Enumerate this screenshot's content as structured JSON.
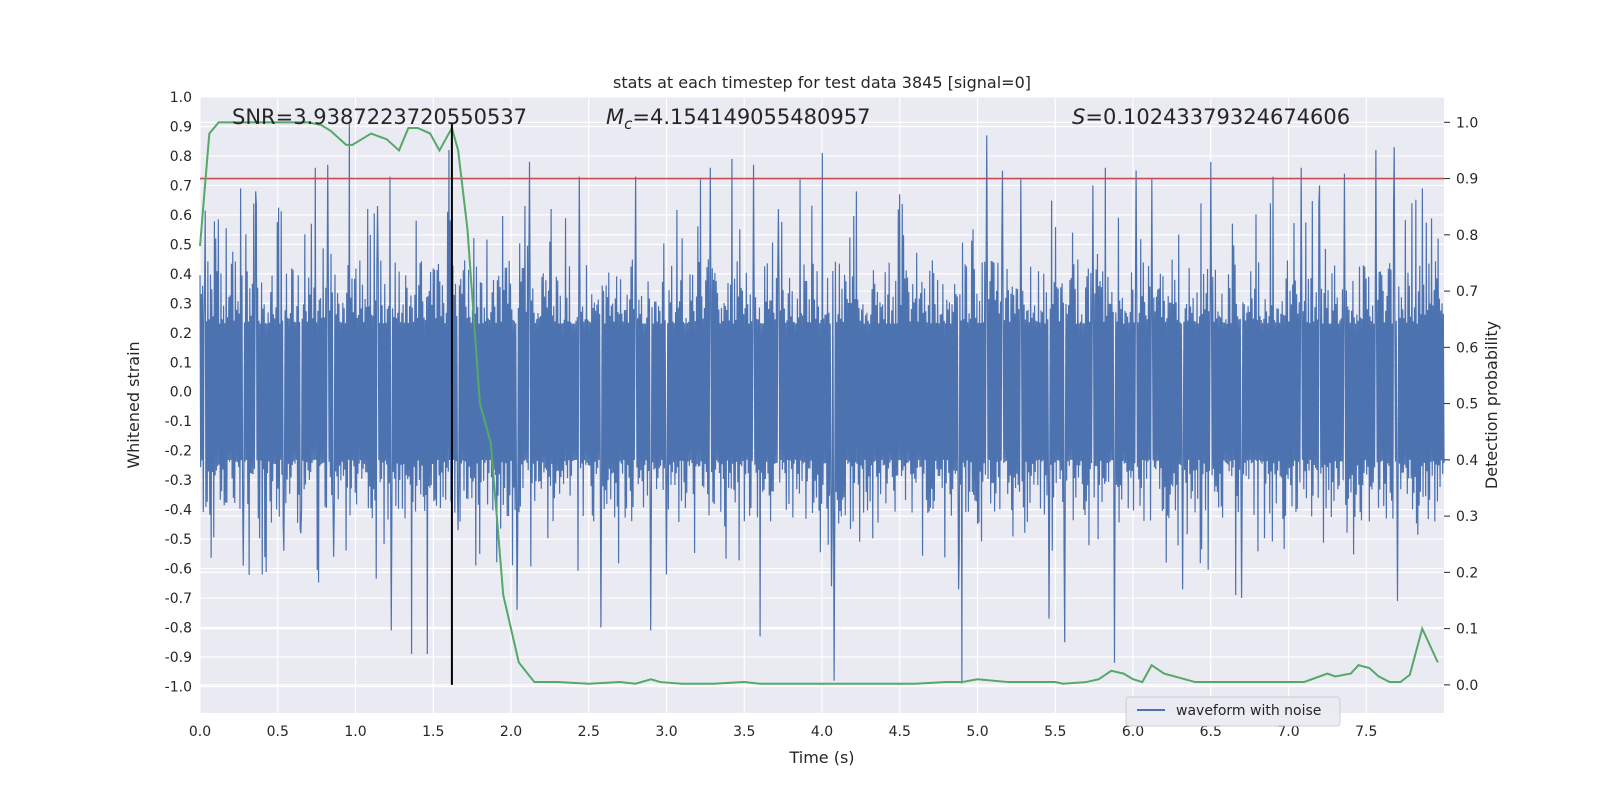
{
  "chart_data": {
    "type": "line",
    "title": "stats at each timestep for test data 3845 [signal=0]",
    "xlabel": "Time (s)",
    "ylabel_left": "Whitened strain",
    "ylabel_right": "Detection probability",
    "xlim": [
      0,
      8.0
    ],
    "ylim_left": [
      -1.09,
      1.0
    ],
    "ylim_right": [
      -0.05,
      1.045
    ],
    "xticks": [
      "0.0",
      "0.5",
      "1.0",
      "1.5",
      "2.0",
      "2.5",
      "3.0",
      "3.5",
      "4.0",
      "4.5",
      "5.0",
      "5.5",
      "6.0",
      "6.5",
      "7.0",
      "7.5"
    ],
    "yticks_left": [
      "1.0",
      "0.9",
      "0.8",
      "0.7",
      "0.6",
      "0.5",
      "0.4",
      "0.3",
      "0.2",
      "0.1",
      "0.0",
      "-0.1",
      "-0.2",
      "-0.3",
      "-0.4",
      "-0.5",
      "-0.6",
      "-0.7",
      "-0.8",
      "-0.9",
      "-1.0"
    ],
    "yticks_right": [
      "1.0",
      "0.9",
      "0.8",
      "0.7",
      "0.6",
      "0.5",
      "0.4",
      "0.3",
      "0.2",
      "0.1",
      "0.0"
    ],
    "annotations": {
      "snr_prefix": "SNR=",
      "snr": "3.9387223720550537",
      "mc_symbol": "M",
      "mc_sub": "c",
      "mc_eq": "=",
      "mc": "4.154149055480957",
      "s_symbol": "S",
      "s_eq": "=",
      "s": "0.10243379324674606"
    },
    "threshold": {
      "value": 0.9,
      "axis": "right",
      "color": "#c44e52"
    },
    "marker_time": 1.62,
    "waveform": {
      "name": "waveform with noise",
      "color": "#4c72b0",
      "envelope_typical": 0.42,
      "peaks": [
        [
          0.03,
          0.36
        ],
        [
          0.1,
          0.52
        ],
        [
          0.26,
          0.69
        ],
        [
          0.28,
          -0.59
        ],
        [
          0.36,
          0.68
        ],
        [
          0.4,
          -0.62
        ],
        [
          0.54,
          -0.54
        ],
        [
          0.65,
          -0.48
        ],
        [
          0.74,
          0.76
        ],
        [
          0.82,
          0.77
        ],
        [
          0.86,
          -0.56
        ],
        [
          0.96,
          0.91
        ],
        [
          1.08,
          0.62
        ],
        [
          1.14,
          0.63
        ],
        [
          1.22,
          0.73
        ],
        [
          1.23,
          -0.81
        ],
        [
          1.36,
          -0.89
        ],
        [
          1.46,
          -0.89
        ],
        [
          1.6,
          0.82
        ],
        [
          1.66,
          -0.47
        ],
        [
          1.8,
          -0.55
        ],
        [
          2.04,
          -0.74
        ],
        [
          2.12,
          0.78
        ],
        [
          2.26,
          0.62
        ],
        [
          2.44,
          0.73
        ],
        [
          2.58,
          -0.8
        ],
        [
          2.8,
          0.73
        ],
        [
          2.9,
          -0.81
        ],
        [
          3.0,
          -0.62
        ],
        [
          3.22,
          0.72
        ],
        [
          3.28,
          0.76
        ],
        [
          3.42,
          0.79
        ],
        [
          3.56,
          0.77
        ],
        [
          3.6,
          -0.83
        ],
        [
          3.72,
          0.62
        ],
        [
          3.86,
          0.72
        ],
        [
          4.0,
          0.81
        ],
        [
          4.06,
          -0.66
        ],
        [
          4.08,
          -0.98
        ],
        [
          4.22,
          0.68
        ],
        [
          4.5,
          0.67
        ],
        [
          4.88,
          -0.67
        ],
        [
          4.9,
          -0.99
        ],
        [
          5.06,
          0.87
        ],
        [
          5.16,
          0.75
        ],
        [
          5.28,
          0.72
        ],
        [
          5.46,
          -0.77
        ],
        [
          5.56,
          -0.85
        ],
        [
          5.74,
          0.7
        ],
        [
          5.82,
          0.76
        ],
        [
          5.88,
          -0.92
        ],
        [
          6.02,
          0.75
        ],
        [
          6.12,
          0.72
        ],
        [
          6.32,
          -0.67
        ],
        [
          6.5,
          0.78
        ],
        [
          6.66,
          -0.69
        ],
        [
          6.7,
          -0.7
        ],
        [
          6.9,
          0.73
        ],
        [
          7.08,
          0.76
        ],
        [
          7.2,
          0.7
        ],
        [
          7.36,
          0.74
        ],
        [
          7.56,
          0.82
        ],
        [
          7.68,
          0.83
        ],
        [
          7.7,
          -0.71
        ],
        [
          7.86,
          0.69
        ],
        [
          7.96,
          0.52
        ]
      ]
    },
    "probability": {
      "name": "detection probability",
      "color": "#55a868",
      "t": [
        0.0,
        0.06,
        0.12,
        0.3,
        0.5,
        0.7,
        0.78,
        0.84,
        0.94,
        0.98,
        1.04,
        1.1,
        1.2,
        1.28,
        1.34,
        1.4,
        1.48,
        1.54,
        1.62,
        1.66,
        1.72,
        1.8,
        1.87,
        1.95,
        2.05,
        2.15,
        2.3,
        2.5,
        2.7,
        2.8,
        2.9,
        2.96,
        3.1,
        3.3,
        3.5,
        3.6,
        3.8,
        4.0,
        4.2,
        4.4,
        4.6,
        4.8,
        4.9,
        5.0,
        5.2,
        5.4,
        5.5,
        5.55,
        5.7,
        5.78,
        5.86,
        5.94,
        6.0,
        6.06,
        6.12,
        6.2,
        6.4,
        6.6,
        6.7,
        6.9,
        7.1,
        7.15,
        7.25,
        7.3,
        7.4,
        7.45,
        7.52,
        7.58,
        7.65,
        7.72,
        7.78,
        7.86,
        7.96
      ],
      "p": [
        0.78,
        0.98,
        1.0,
        1.0,
        1.0,
        1.0,
        0.995,
        0.985,
        0.96,
        0.96,
        0.97,
        0.98,
        0.97,
        0.95,
        0.99,
        0.99,
        0.98,
        0.95,
        0.99,
        0.95,
        0.81,
        0.5,
        0.43,
        0.16,
        0.04,
        0.005,
        0.005,
        0.002,
        0.005,
        0.002,
        0.01,
        0.005,
        0.002,
        0.002,
        0.005,
        0.002,
        0.002,
        0.002,
        0.002,
        0.002,
        0.002,
        0.005,
        0.005,
        0.01,
        0.005,
        0.005,
        0.005,
        0.002,
        0.005,
        0.01,
        0.025,
        0.02,
        0.01,
        0.005,
        0.035,
        0.02,
        0.005,
        0.005,
        0.005,
        0.005,
        0.005,
        0.01,
        0.02,
        0.015,
        0.02,
        0.035,
        0.03,
        0.015,
        0.005,
        0.005,
        0.018,
        0.1,
        0.04
      ]
    },
    "legend": {
      "entries": [
        "waveform with noise"
      ],
      "placement": "lower-right"
    }
  }
}
